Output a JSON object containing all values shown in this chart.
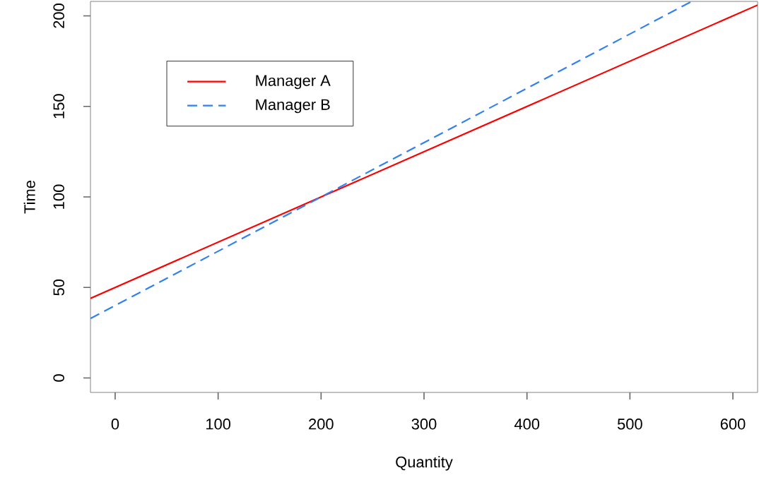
{
  "chart_data": {
    "type": "line",
    "xlabel": "Quantity",
    "ylabel": "Time",
    "xlim": [
      -24,
      624
    ],
    "ylim": [
      -8,
      208
    ],
    "xticks": [
      0,
      100,
      200,
      300,
      400,
      500,
      600
    ],
    "yticks": [
      0,
      50,
      100,
      150,
      200
    ],
    "grid": false,
    "legend": "top left",
    "marker": "none",
    "series": [
      {
        "name": "Manager A",
        "color": "#ff0000",
        "line_style": "solid",
        "x": [
          -24,
          624
        ],
        "values": [
          44,
          206
        ]
      },
      {
        "name": "Manager B",
        "color": "#3380f0",
        "line_style": "dashed",
        "x": [
          -24,
          560
        ],
        "values": [
          32.8,
          208
        ]
      }
    ]
  }
}
